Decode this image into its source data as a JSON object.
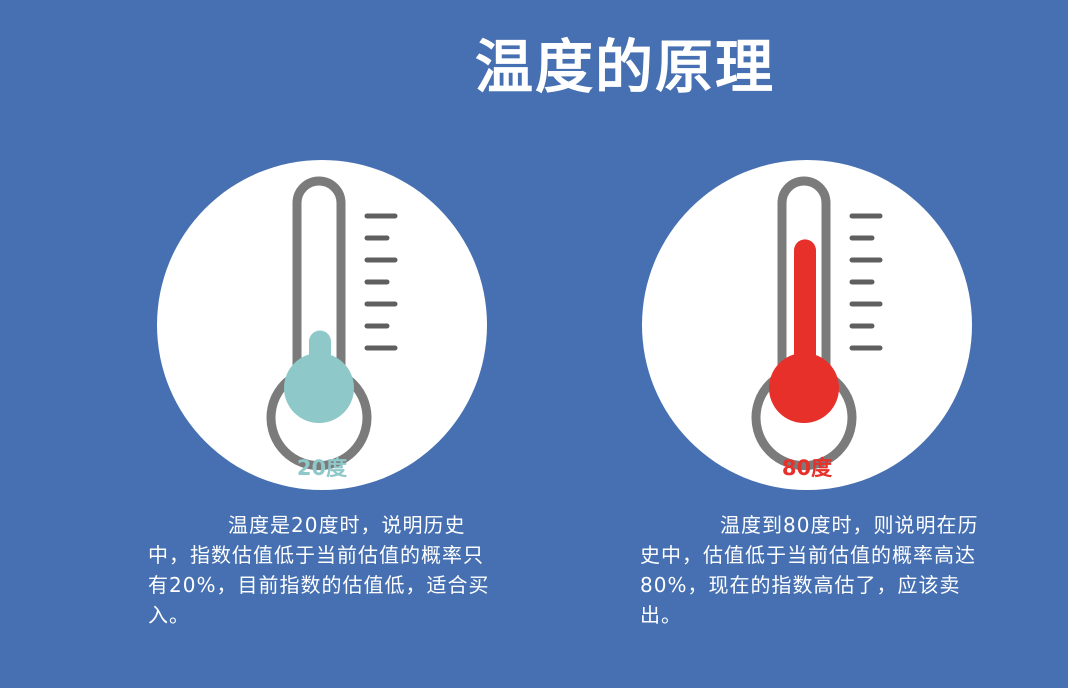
{
  "title": "温度的原理",
  "colors": {
    "background": "#4670b1",
    "cold_fill": "#8fc8c9",
    "hot_fill": "#e8302a",
    "outline": "#7b7b7b"
  },
  "left": {
    "temp_label": "20度",
    "level_percent": 20,
    "description": "温度是20度时，说明历史中，指数估值低于当前估值的概率只有20%，目前指数的估值低，适合买入。"
  },
  "right": {
    "temp_label": "80度",
    "level_percent": 80,
    "description": "温度到80度时，则说明在历史中，估值低于当前估值的概率高达80%，现在的指数高估了，应该卖出。"
  }
}
